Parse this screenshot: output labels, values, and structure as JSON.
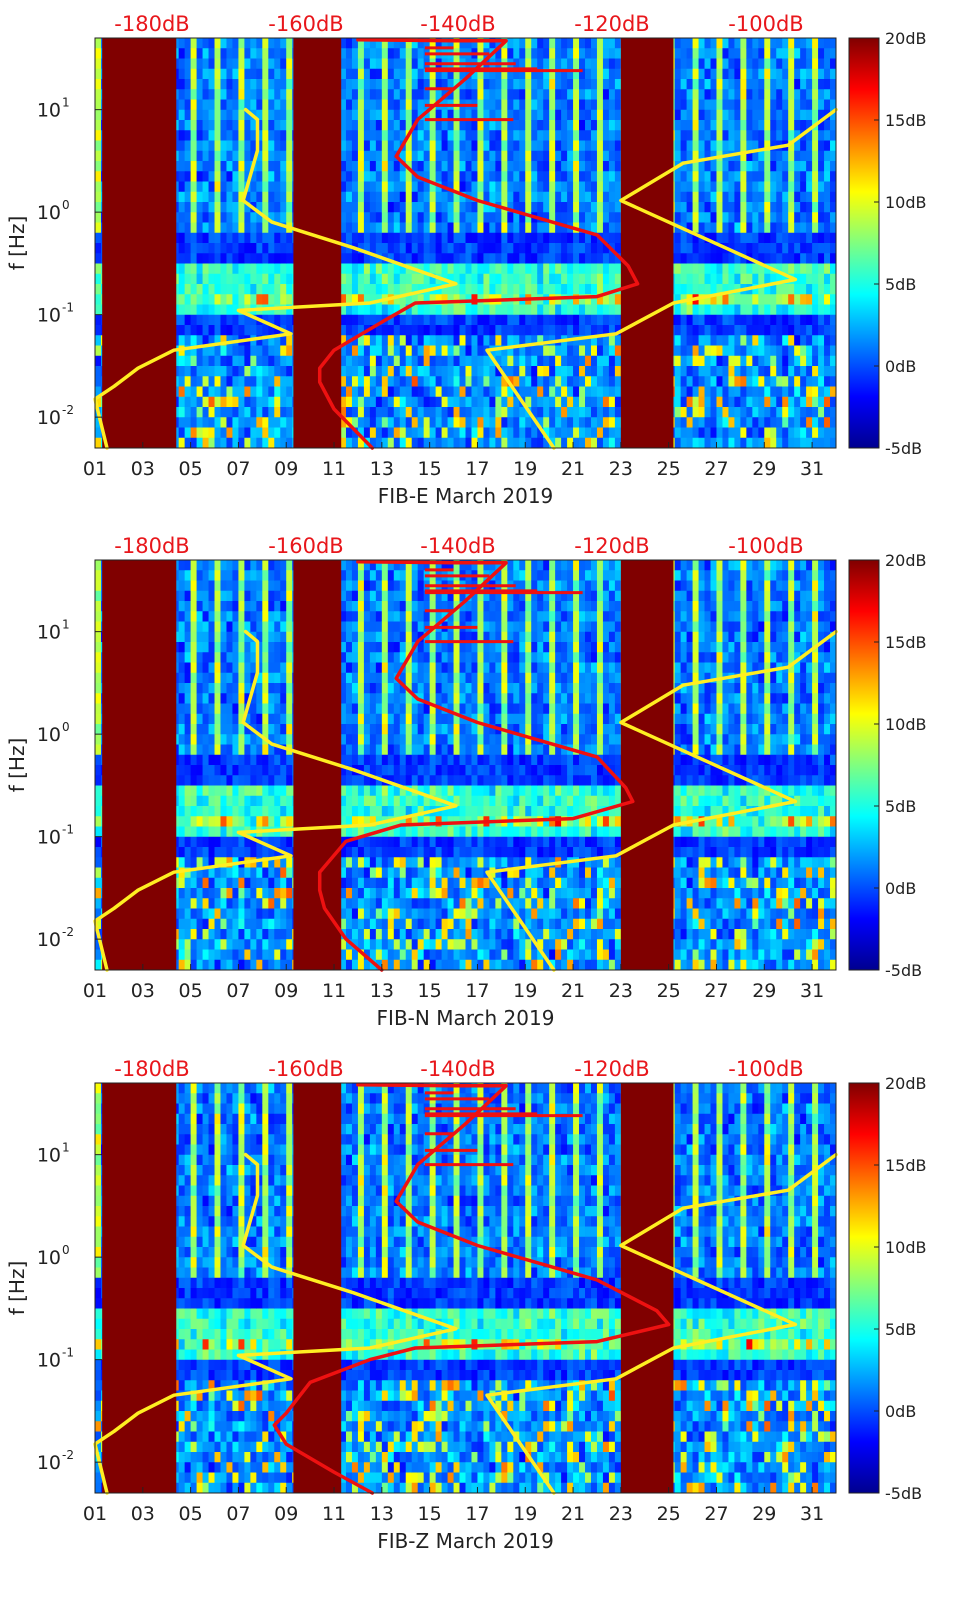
{
  "chart_data": [
    {
      "type": "heatmap",
      "title": "",
      "xlabel": "FIB-E March 2019",
      "ylabel": "f [Hz]",
      "xlim": [
        1,
        32
      ],
      "ylim": [
        0.005,
        50
      ],
      "yscale": "log",
      "x_tick_labels": [
        "01",
        "03",
        "05",
        "07",
        "09",
        "11",
        "13",
        "15",
        "17",
        "19",
        "21",
        "23",
        "25",
        "27",
        "29",
        "31"
      ],
      "y_tick_labels": [
        "10-2",
        "10-1",
        "100",
        "101"
      ],
      "colorbar": {
        "min_db": -5,
        "max_db": 20,
        "tick_labels": [
          "-5dB",
          "0dB",
          "5dB",
          "10dB",
          "15dB",
          "20dB"
        ]
      },
      "top_labels": [
        "-180dB",
        "-160dB",
        "-140dB",
        "-120dB",
        "-100dB"
      ],
      "gaps": [
        [
          1.3,
          4.4
        ],
        [
          9.3,
          11.3
        ],
        [
          23.0,
          25.2
        ]
      ],
      "series": [
        {
          "name": "yellow-reference",
          "color": "#ffee22",
          "points": [
            [
              7.3,
              10
            ],
            [
              7.8,
              8
            ],
            [
              7.8,
              4
            ],
            [
              7.2,
              1.3
            ],
            [
              8.4,
              0.8
            ],
            [
              11.8,
              0.45
            ],
            [
              16.1,
              0.2
            ],
            [
              12.5,
              0.13
            ],
            [
              7.0,
              0.11
            ],
            [
              9.2,
              0.065
            ],
            [
              4.3,
              0.045
            ],
            [
              2.8,
              0.03
            ],
            [
              1.8,
              0.02
            ],
            [
              1.0,
              0.015
            ],
            [
              1.5,
              0.005
            ]
          ]
        },
        {
          "name": "yellow-reference-2",
          "color": "#ffee22",
          "points": [
            [
              32,
              10
            ],
            [
              30,
              4.5
            ],
            [
              25.6,
              3
            ],
            [
              23,
              1.3
            ],
            [
              30.3,
              0.22
            ],
            [
              25.2,
              0.13
            ],
            [
              22.8,
              0.065
            ],
            [
              17.4,
              0.045
            ],
            [
              20.2,
              0.005
            ]
          ]
        },
        {
          "name": "red-noise-model",
          "color": "#ee1111",
          "points": [
            [
              12,
              48
            ],
            [
              16,
              47
            ],
            [
              18.2,
              47
            ],
            [
              16.5,
              20
            ],
            [
              14.5,
              8
            ],
            [
              13.6,
              3.5
            ],
            [
              14.5,
              2.2
            ],
            [
              17,
              1.3
            ],
            [
              22,
              0.6
            ],
            [
              23.3,
              0.3
            ],
            [
              23.7,
              0.2
            ],
            [
              22,
              0.15
            ],
            [
              14.4,
              0.13
            ],
            [
              13.2,
              0.09
            ],
            [
              11,
              0.045
            ],
            [
              10.4,
              0.03
            ],
            [
              10.4,
              0.022
            ],
            [
              11,
              0.012
            ],
            [
              12.6,
              0.005
            ]
          ]
        }
      ]
    },
    {
      "type": "heatmap",
      "title": "",
      "xlabel": "FIB-N March 2019",
      "ylabel": "f [Hz]",
      "xlim": [
        1,
        32
      ],
      "ylim": [
        0.005,
        50
      ],
      "yscale": "log",
      "x_tick_labels": [
        "01",
        "03",
        "05",
        "07",
        "09",
        "11",
        "13",
        "15",
        "17",
        "19",
        "21",
        "23",
        "25",
        "27",
        "29",
        "31"
      ],
      "y_tick_labels": [
        "10-2",
        "10-1",
        "100",
        "101"
      ],
      "colorbar": {
        "min_db": -5,
        "max_db": 20,
        "tick_labels": [
          "-5dB",
          "0dB",
          "5dB",
          "10dB",
          "15dB",
          "20dB"
        ]
      },
      "top_labels": [
        "-180dB",
        "-160dB",
        "-140dB",
        "-120dB",
        "-100dB"
      ],
      "gaps": [
        [
          1.3,
          4.4
        ],
        [
          9.3,
          11.3
        ],
        [
          23.0,
          25.2
        ]
      ],
      "series": [
        {
          "name": "yellow-reference",
          "color": "#ffee22",
          "points": [
            [
              7.3,
              10
            ],
            [
              7.8,
              8
            ],
            [
              7.8,
              4
            ],
            [
              7.2,
              1.3
            ],
            [
              8.4,
              0.8
            ],
            [
              11.8,
              0.45
            ],
            [
              16.1,
              0.2
            ],
            [
              12.5,
              0.13
            ],
            [
              7.0,
              0.11
            ],
            [
              9.2,
              0.065
            ],
            [
              4.3,
              0.045
            ],
            [
              2.8,
              0.03
            ],
            [
              1.8,
              0.02
            ],
            [
              1.0,
              0.015
            ],
            [
              1.5,
              0.005
            ]
          ]
        },
        {
          "name": "yellow-reference-2",
          "color": "#ffee22",
          "points": [
            [
              32,
              10
            ],
            [
              30,
              4.5
            ],
            [
              25.6,
              3
            ],
            [
              23,
              1.3
            ],
            [
              30.3,
              0.22
            ],
            [
              25.2,
              0.13
            ],
            [
              22.8,
              0.065
            ],
            [
              17.4,
              0.045
            ],
            [
              20.2,
              0.005
            ]
          ]
        },
        {
          "name": "red-noise-model",
          "color": "#ee1111",
          "points": [
            [
              12,
              48
            ],
            [
              16,
              47
            ],
            [
              18.2,
              47
            ],
            [
              16.5,
              20
            ],
            [
              14.5,
              8
            ],
            [
              13.6,
              3.5
            ],
            [
              14.5,
              2.2
            ],
            [
              17,
              1.3
            ],
            [
              22,
              0.6
            ],
            [
              23.2,
              0.3
            ],
            [
              23.5,
              0.22
            ],
            [
              21,
              0.15
            ],
            [
              13.8,
              0.13
            ],
            [
              11.5,
              0.09
            ],
            [
              10.4,
              0.045
            ],
            [
              10.4,
              0.03
            ],
            [
              10.6,
              0.02
            ],
            [
              11.5,
              0.01
            ],
            [
              13,
              0.005
            ]
          ]
        }
      ]
    },
    {
      "type": "heatmap",
      "title": "",
      "xlabel": "FIB-Z March 2019",
      "ylabel": "f [Hz]",
      "xlim": [
        1,
        32
      ],
      "ylim": [
        0.005,
        50
      ],
      "yscale": "log",
      "x_tick_labels": [
        "01",
        "03",
        "05",
        "07",
        "09",
        "11",
        "13",
        "15",
        "17",
        "19",
        "21",
        "23",
        "25",
        "27",
        "29",
        "31"
      ],
      "y_tick_labels": [
        "10-2",
        "10-1",
        "100",
        "101"
      ],
      "colorbar": {
        "min_db": -5,
        "max_db": 20,
        "tick_labels": [
          "-5dB",
          "0dB",
          "5dB",
          "10dB",
          "15dB",
          "20dB"
        ]
      },
      "top_labels": [
        "-180dB",
        "-160dB",
        "-140dB",
        "-120dB",
        "-100dB"
      ],
      "gaps": [
        [
          1.3,
          4.4
        ],
        [
          9.3,
          11.3
        ],
        [
          23.0,
          25.2
        ]
      ],
      "series": [
        {
          "name": "yellow-reference",
          "color": "#ffee22",
          "points": [
            [
              7.3,
              10
            ],
            [
              7.8,
              8
            ],
            [
              7.8,
              4
            ],
            [
              7.2,
              1.3
            ],
            [
              8.4,
              0.8
            ],
            [
              11.8,
              0.45
            ],
            [
              16.1,
              0.2
            ],
            [
              12.5,
              0.13
            ],
            [
              7.0,
              0.11
            ],
            [
              9.2,
              0.065
            ],
            [
              4.3,
              0.045
            ],
            [
              2.8,
              0.03
            ],
            [
              1.8,
              0.02
            ],
            [
              1.0,
              0.015
            ],
            [
              1.5,
              0.005
            ]
          ]
        },
        {
          "name": "yellow-reference-2",
          "color": "#ffee22",
          "points": [
            [
              32,
              10
            ],
            [
              30,
              4.5
            ],
            [
              25.6,
              3
            ],
            [
              23,
              1.3
            ],
            [
              30.3,
              0.22
            ],
            [
              25.2,
              0.13
            ],
            [
              22.8,
              0.065
            ],
            [
              17.4,
              0.045
            ],
            [
              20.2,
              0.005
            ]
          ]
        },
        {
          "name": "red-noise-model",
          "color": "#ee1111",
          "points": [
            [
              12,
              48
            ],
            [
              16,
              47
            ],
            [
              18.2,
              47
            ],
            [
              16.5,
              20
            ],
            [
              14.5,
              8
            ],
            [
              13.6,
              3.5
            ],
            [
              14.5,
              2.2
            ],
            [
              17,
              1.3
            ],
            [
              22,
              0.6
            ],
            [
              24.5,
              0.3
            ],
            [
              25,
              0.22
            ],
            [
              22,
              0.15
            ],
            [
              14.4,
              0.13
            ],
            [
              12.5,
              0.1
            ],
            [
              10,
              0.06
            ],
            [
              9,
              0.03
            ],
            [
              8.5,
              0.023
            ],
            [
              9,
              0.015
            ],
            [
              11,
              0.008
            ],
            [
              12.6,
              0.005
            ]
          ]
        }
      ]
    }
  ]
}
